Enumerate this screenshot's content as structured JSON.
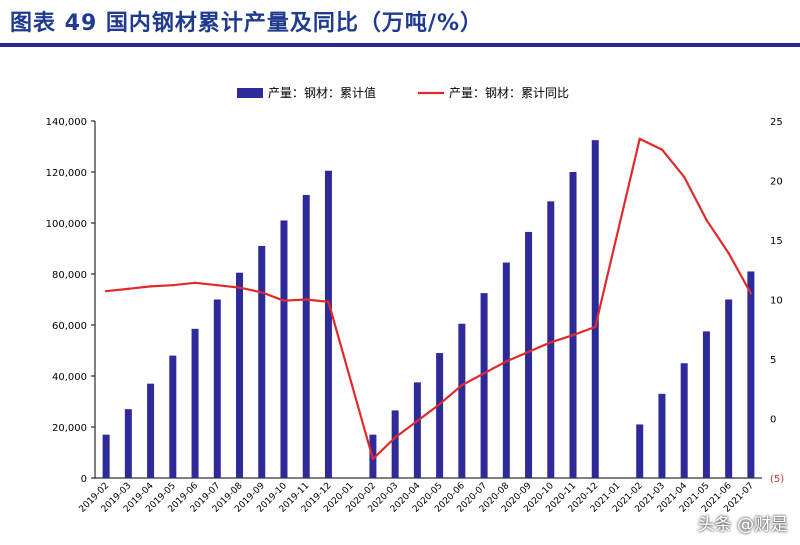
{
  "title": "图表 49 国内钢材累计产量及同比（万吨/%）",
  "watermark": "头条 @财是",
  "colors": {
    "bar": "#2e2a9a",
    "line": "#e02a2a",
    "title": "#1f3a8f",
    "rule": "#2a2a8c"
  },
  "chart_data": {
    "type": "bar",
    "title": "图表 49 国内钢材累计产量及同比（万吨/%）",
    "xlabel": "",
    "ylabel": "",
    "legend_position": "top-center",
    "grid": false,
    "categories": [
      "2019-02",
      "2019-03",
      "2019-04",
      "2019-05",
      "2019-06",
      "2019-07",
      "2019-08",
      "2019-09",
      "2019-10",
      "2019-11",
      "2019-12",
      "2020-01",
      "2020-02",
      "2020-03",
      "2020-04",
      "2020-05",
      "2020-06",
      "2020-07",
      "2020-08",
      "2020-09",
      "2020-10",
      "2020-11",
      "2020-12",
      "2021-01",
      "2021-02",
      "2021-03",
      "2021-04",
      "2021-05",
      "2021-06",
      "2021-07"
    ],
    "y_left": {
      "min": 0,
      "max": 140000,
      "ticks": [
        "0",
        "20,000",
        "40,000",
        "60,000",
        "80,000",
        "100,000",
        "120,000",
        "140,000"
      ],
      "tick_values": [
        0,
        20000,
        40000,
        60000,
        80000,
        100000,
        120000,
        140000
      ]
    },
    "y_right": {
      "min": -5,
      "max": 25,
      "ticks": [
        "(5)",
        "0",
        "5",
        "10",
        "15",
        "20",
        "25"
      ],
      "tick_values": [
        -5,
        0,
        5,
        10,
        15,
        20,
        25
      ]
    },
    "series": [
      {
        "name": "产量：钢材：累计值",
        "kind": "bar",
        "axis": "left",
        "values": [
          17000,
          27000,
          37000,
          48000,
          58500,
          70000,
          80500,
          91000,
          101000,
          111000,
          120500,
          null,
          17000,
          26500,
          37500,
          49000,
          60500,
          72500,
          84500,
          96500,
          108500,
          120000,
          132500,
          null,
          21000,
          33000,
          45000,
          57500,
          70000,
          81000
        ]
      },
      {
        "name": "产量：钢材：累计同比",
        "kind": "line",
        "axis": "right",
        "values": [
          10.7,
          10.9,
          11.1,
          11.2,
          11.4,
          11.2,
          11.0,
          10.6,
          9.9,
          10.0,
          9.8,
          null,
          -3.4,
          -1.6,
          -0.2,
          1.2,
          2.8,
          3.8,
          4.8,
          5.6,
          6.4,
          7.0,
          7.7,
          null,
          23.5,
          22.6,
          20.3,
          16.7,
          13.9,
          10.5
        ]
      }
    ]
  }
}
